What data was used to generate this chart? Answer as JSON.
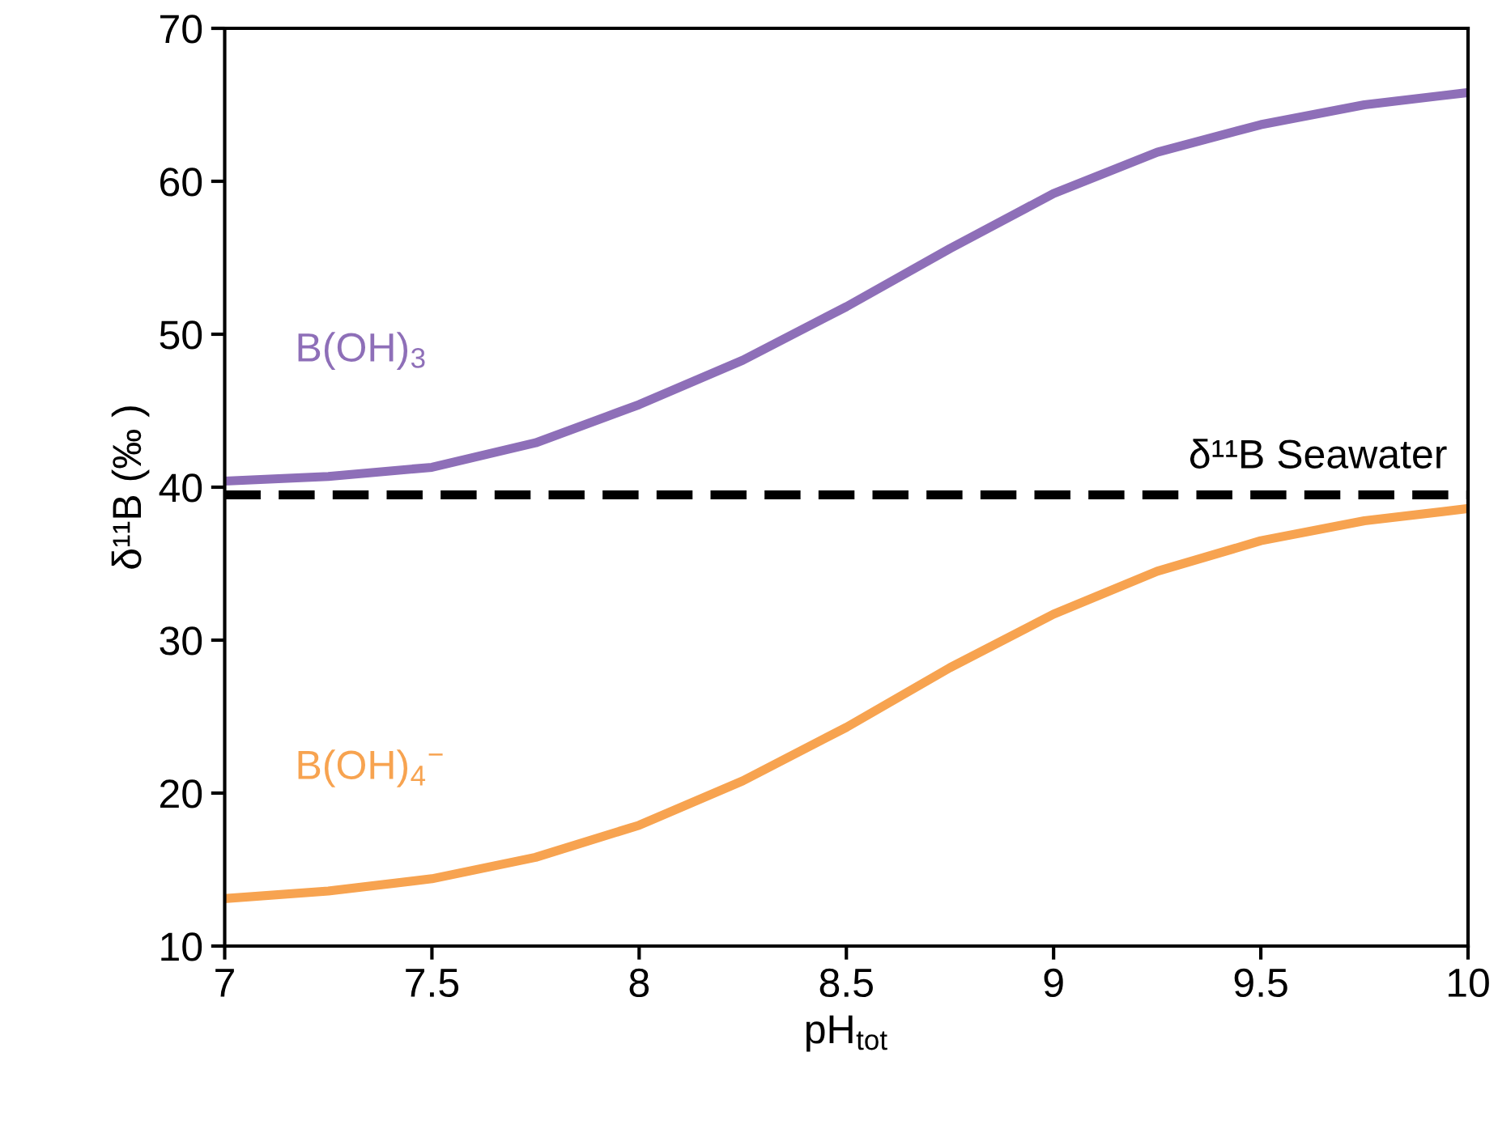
{
  "chart_data": {
    "type": "line",
    "xlabel": "pH$_{tot}$",
    "ylabel": "δ¹¹B (‰ )",
    "x": [
      7,
      7.25,
      7.5,
      7.75,
      8,
      8.25,
      8.5,
      8.75,
      9,
      9.25,
      9.5,
      9.75,
      10
    ],
    "series": [
      {
        "name": "B(OH)$_{3}$",
        "color": "#8e6fb8",
        "values": [
          40.4,
          40.7,
          41.3,
          42.9,
          45.4,
          48.3,
          51.8,
          55.6,
          59.2,
          61.9,
          63.7,
          65.0,
          65.8
        ]
      },
      {
        "name": "B(OH)$_{4}$$^{−}$",
        "color": "#f7a350",
        "values": [
          13.1,
          13.6,
          14.4,
          15.8,
          17.9,
          20.8,
          24.3,
          28.2,
          31.7,
          34.5,
          36.5,
          37.8,
          38.6
        ]
      }
    ],
    "ref_lines": [
      {
        "axis": "y",
        "value": 39.5,
        "label": "δ¹¹B Seawater",
        "color": "#000000",
        "line_style": "dashed"
      }
    ],
    "xlim": [
      7,
      10
    ],
    "ylim": [
      10,
      70
    ],
    "xticks": [
      7,
      7.5,
      8,
      8.5,
      9,
      9.5,
      10
    ],
    "yticks": [
      10,
      20,
      30,
      40,
      50,
      60,
      70
    ],
    "grid": false,
    "legend": false,
    "marker": "none",
    "line_style": "solid"
  }
}
